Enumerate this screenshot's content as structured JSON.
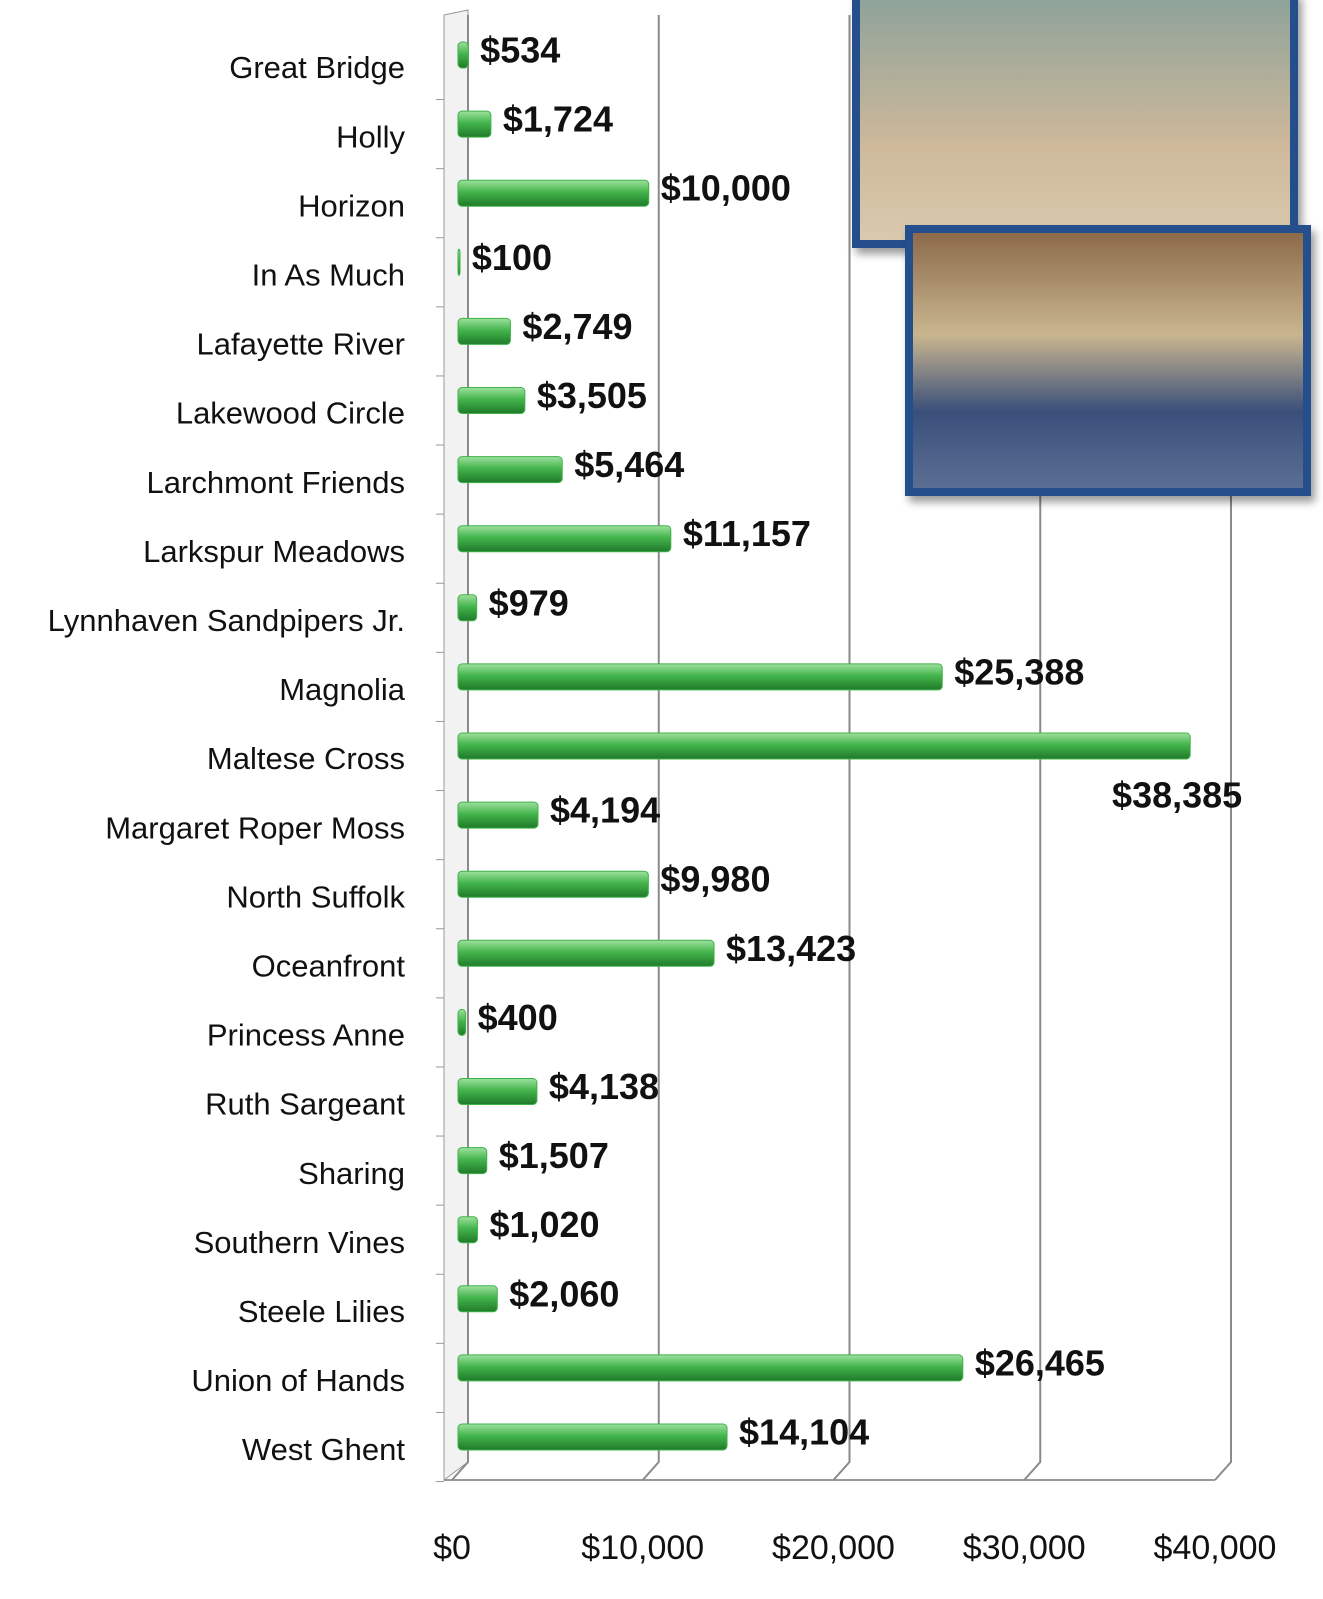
{
  "chart_data": {
    "type": "bar",
    "orientation": "horizontal",
    "categories": [
      "Great Bridge",
      "Holly",
      "Horizon",
      "In As Much",
      "Lafayette River",
      "Lakewood Circle",
      "Larchmont Friends",
      "Larkspur Meadows",
      "Lynnhaven Sandpipers Jr.",
      "Magnolia",
      "Maltese Cross",
      "Margaret Roper Moss",
      "North Suffolk",
      "Oceanfront",
      "Princess Anne",
      "Ruth Sargeant",
      "Sharing",
      "Southern Vines",
      "Steele Lilies",
      "Union of Hands",
      "West Ghent"
    ],
    "values": [
      534,
      1724,
      10000,
      100,
      2749,
      3505,
      5464,
      11157,
      979,
      25388,
      38385,
      4194,
      9980,
      13423,
      400,
      4138,
      1507,
      1020,
      2060,
      26465,
      14104
    ],
    "value_labels": [
      "$534",
      "$1,724",
      "$10,000",
      "$100",
      "$2,749",
      "$3,505",
      "$5,464",
      "$11,157",
      "$979",
      "$25,388",
      "$38,385",
      "$4,194",
      "$9,980",
      "$13,423",
      "$400",
      "$4,138",
      "$1,507",
      "$1,020",
      "$2,060",
      "$26,465",
      "$14,104"
    ],
    "color": "#3fb34a",
    "xlim": [
      0,
      40000
    ],
    "xticks": [
      {
        "value": 0,
        "label": "$0"
      },
      {
        "value": 10000,
        "label": "$10,000"
      },
      {
        "value": 20000,
        "label": "$20,000"
      },
      {
        "value": 30000,
        "label": "$30,000"
      },
      {
        "value": 40000,
        "label": "$40,000"
      }
    ],
    "grid": true
  }
}
